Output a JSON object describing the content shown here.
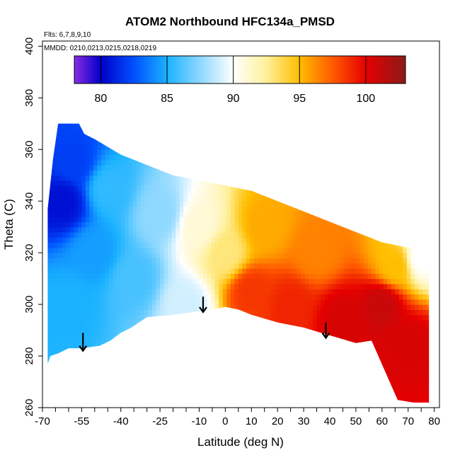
{
  "chart_data": {
    "type": "heatmap",
    "title": "ATOM2 Northbound HFC134a_PMSD",
    "subtitle_lines": [
      "Flts: 6,7,8,9,10",
      "MMDD: 0210,0213,0215,0218,0219"
    ],
    "xlabel": "Latitude (deg N)",
    "ylabel": "Theta (C)",
    "xlim": [
      -70,
      82
    ],
    "ylim": [
      260,
      402
    ],
    "x_ticks": [
      -70,
      -55,
      -40,
      -25,
      -10,
      0,
      10,
      20,
      30,
      40,
      50,
      60,
      70,
      80
    ],
    "x_tick_labels": [
      "-70",
      "-55",
      "-40",
      "-25",
      "-10",
      "0",
      "10",
      "20",
      "30",
      "40",
      "50",
      "60",
      "70",
      "80"
    ],
    "x_minor_ticks": [
      -65,
      -60,
      -50,
      -45,
      -35,
      -30,
      -20,
      -15,
      -5,
      5,
      15,
      25,
      35,
      45,
      55,
      65,
      75
    ],
    "y_ticks": [
      260,
      280,
      300,
      320,
      340,
      360,
      380,
      400
    ],
    "y_tick_labels": [
      "260",
      "280",
      "300",
      "320",
      "340",
      "360",
      "380",
      "400"
    ],
    "colorbar": {
      "range": [
        78,
        103
      ],
      "ticks": [
        80,
        85,
        90,
        95,
        100
      ],
      "tick_labels": [
        "80",
        "85",
        "90",
        "95",
        "100"
      ],
      "stops": [
        {
          "value": 78,
          "color": "#8a2be2"
        },
        {
          "value": 80,
          "color": "#0000c8"
        },
        {
          "value": 82.5,
          "color": "#0050ff"
        },
        {
          "value": 85,
          "color": "#1ab2ff"
        },
        {
          "value": 87.5,
          "color": "#8ed8ff"
        },
        {
          "value": 90,
          "color": "#ffffff"
        },
        {
          "value": 92.5,
          "color": "#fff09a"
        },
        {
          "value": 95,
          "color": "#ffbe00"
        },
        {
          "value": 97.5,
          "color": "#ff5a00"
        },
        {
          "value": 100,
          "color": "#e60000"
        },
        {
          "value": 103,
          "color": "#8b1a1a"
        }
      ]
    },
    "data_domain": {
      "top_boundary": [
        [
          -68,
          337
        ],
        [
          -66,
          356
        ],
        [
          -64,
          370
        ],
        [
          -56,
          370
        ],
        [
          -54,
          366
        ],
        [
          -50,
          364
        ],
        [
          -40,
          358
        ],
        [
          -30,
          354
        ],
        [
          -20,
          350
        ],
        [
          -10,
          348
        ],
        [
          0,
          346
        ],
        [
          10,
          344
        ],
        [
          20,
          340
        ],
        [
          30,
          336
        ],
        [
          40,
          332
        ],
        [
          50,
          328
        ],
        [
          60,
          324
        ],
        [
          70,
          322
        ],
        [
          78,
          322
        ]
      ],
      "bottom_boundary": [
        [
          78,
          262
        ],
        [
          72,
          262
        ],
        [
          66,
          263
        ],
        [
          56,
          286
        ],
        [
          50,
          285
        ],
        [
          40,
          288
        ],
        [
          30,
          291
        ],
        [
          20,
          293
        ],
        [
          10,
          296
        ],
        [
          5,
          298
        ],
        [
          0,
          299
        ],
        [
          -5,
          298
        ],
        [
          -20,
          296
        ],
        [
          -30,
          295
        ],
        [
          -36,
          291
        ],
        [
          -40,
          289
        ],
        [
          -44,
          286
        ],
        [
          -48,
          284
        ],
        [
          -55,
          283
        ],
        [
          -60,
          283
        ],
        [
          -64,
          281
        ],
        [
          -67,
          280
        ],
        [
          -68,
          277
        ]
      ]
    },
    "value_field": [
      {
        "lat": -62,
        "theta": 340,
        "value": 80.5
      },
      {
        "lat": -58,
        "theta": 355,
        "value": 82.0
      },
      {
        "lat": -60,
        "theta": 300,
        "value": 85.0
      },
      {
        "lat": -50,
        "theta": 320,
        "value": 84.5
      },
      {
        "lat": -45,
        "theta": 345,
        "value": 85.5
      },
      {
        "lat": -35,
        "theta": 310,
        "value": 86.0
      },
      {
        "lat": -25,
        "theta": 335,
        "value": 87.5
      },
      {
        "lat": -15,
        "theta": 300,
        "value": 89.0
      },
      {
        "lat": -10,
        "theta": 330,
        "value": 91.0
      },
      {
        "lat": 0,
        "theta": 320,
        "value": 93.0
      },
      {
        "lat": 10,
        "theta": 305,
        "value": 98.5
      },
      {
        "lat": 15,
        "theta": 330,
        "value": 95.5
      },
      {
        "lat": 25,
        "theta": 300,
        "value": 99.0
      },
      {
        "lat": 35,
        "theta": 320,
        "value": 96.5
      },
      {
        "lat": 45,
        "theta": 295,
        "value": 100.5
      },
      {
        "lat": 60,
        "theta": 300,
        "value": 101.0
      },
      {
        "lat": 70,
        "theta": 285,
        "value": 100.5
      },
      {
        "lat": 65,
        "theta": 315,
        "value": 95.0
      },
      {
        "lat": 75,
        "theta": 318,
        "value": 90.0
      }
    ],
    "arrows": [
      {
        "lat": -54.5,
        "theta_top": 289,
        "theta_bottom": 282
      },
      {
        "lat": -8.5,
        "theta_top": 303,
        "theta_bottom": 297
      },
      {
        "lat": 38.5,
        "theta_top": 293,
        "theta_bottom": 287
      }
    ],
    "legend_position": "inside top, horizontal colorbar",
    "grid": false
  }
}
